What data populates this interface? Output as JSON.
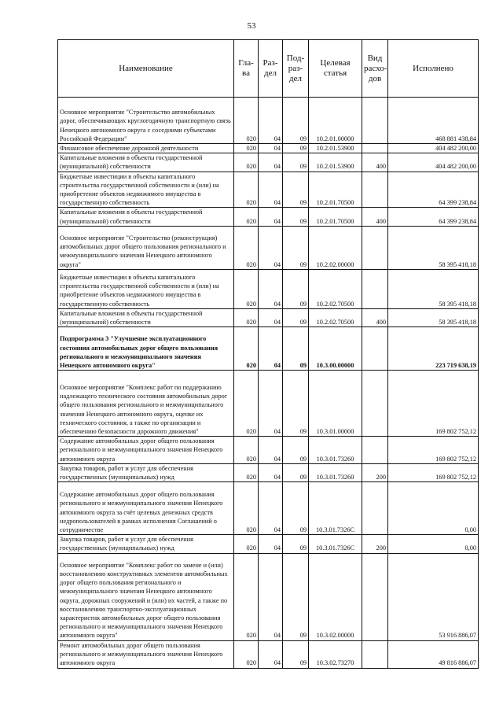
{
  "page_number": "53",
  "headers": [
    "Наименование",
    "Гла-ва",
    "Раз-дел",
    "Под-раз-дел",
    "Целевая статья",
    "Вид расхо-дов",
    "Исполнено"
  ],
  "rows": [
    {
      "name": "Основное мероприятие \"Строительство автомобильных дорог, обеспечивающих круглогодичную транспортную связь Ненецкого автономного округа с соседними субъектами Российской Федерации\"",
      "glava": "020",
      "razdel": "04",
      "podrazdel": "09",
      "celevaya": "10.2.01.00000",
      "vid": "",
      "ispolneno": "468 881 438,84"
    },
    {
      "name": "Финансовое обеспечение дорожной деятельности",
      "glava": "020",
      "razdel": "04",
      "podrazdel": "09",
      "celevaya": "10.2.01.53900",
      "vid": "",
      "ispolneno": "404 482 200,00"
    },
    {
      "name": "Капитальные вложения в объекты государственной (муниципальной) собственности",
      "glava": "020",
      "razdel": "04",
      "podrazdel": "09",
      "celevaya": "10.2.01.53900",
      "vid": "400",
      "ispolneno": "404 482 200,00"
    },
    {
      "name": "Бюджетные инвестиции в объекты капитального строительства государственной собственности и (или) на приобретение объектов недвижимого имущества в государственную собственность",
      "glava": "020",
      "razdel": "04",
      "podrazdel": "09",
      "celevaya": "10.2.01.70500",
      "vid": "",
      "ispolneno": "64 399 238,84"
    },
    {
      "name": "Капитальные вложения в объекты государственной (муниципальной) собственности",
      "glava": "020",
      "razdel": "04",
      "podrazdel": "09",
      "celevaya": "10.2.01.70500",
      "vid": "400",
      "ispolneno": "64 399 238,84"
    },
    {
      "name": "Основное мероприятие \"Строительство (реконструкция) автомобильных дорог общего пользования регионального и межмуниципального значения Ненецкого автономного округа\"",
      "glava": "020",
      "razdel": "04",
      "podrazdel": "09",
      "celevaya": "10.2.02.00000",
      "vid": "",
      "ispolneno": "58 395 418,18"
    },
    {
      "name": "Бюджетные инвестиции в объекты капитального строительства государственной собственности и (или) на приобретение объектов недвижимого имущества в государственную собственность",
      "glava": "020",
      "razdel": "04",
      "podrazdel": "09",
      "celevaya": "10.2.02.70500",
      "vid": "",
      "ispolneno": "58 395 418,18"
    },
    {
      "name": "Капитальные вложения в объекты государственной (муниципальной) собственности",
      "glava": "020",
      "razdel": "04",
      "podrazdel": "09",
      "celevaya": "10.2.02.70500",
      "vid": "400",
      "ispolneno": "58 395 418,18"
    },
    {
      "name": "Подпрограмма 3 \"Улучшение эксплуатационного состояния автомобильных дорог общего пользования регионального и межмуниципального значения Ненецкого автономного округа\"",
      "glava": "020",
      "razdel": "04",
      "podrazdel": "09",
      "celevaya": "10.3.00.00000",
      "vid": "",
      "ispolneno": "223 719 638,19",
      "bold": true
    },
    {
      "name": "Основное мероприятие \"Комплекс работ по поддержанию надлежащего технического состояния автомобильных дорог общего пользования регионального и межмуниципального значения Ненецкого автономного округа, оценке их технического состояния, а также по организации и обеспечению безопасности дорожного движения\"",
      "glava": "020",
      "razdel": "04",
      "podrazdel": "09",
      "celevaya": "10.3.01.00000",
      "vid": "",
      "ispolneno": "169 802 752,12"
    },
    {
      "name": "Содержание автомобильных дорог общего пользования регионального и межмуниципального значения Ненецкого автономного округа",
      "glava": "020",
      "razdel": "04",
      "podrazdel": "09",
      "celevaya": "10.3.01.73260",
      "vid": "",
      "ispolneno": "169 802 752,12"
    },
    {
      "name": "Закупка товаров, работ и услуг для обеспечения государственных (муниципальных) нужд",
      "glava": "020",
      "razdel": "04",
      "podrazdel": "09",
      "celevaya": "10.3.01.73260",
      "vid": "200",
      "ispolneno": "169 802 752,12"
    },
    {
      "name": "Содержание автомобильных дорог общего пользования регионального и межмуниципального значения Ненецкого автономного округа за счёт целевых денежных средств недропользователей в рамках исполнения Соглашений о сотрудничестве",
      "glava": "020",
      "razdel": "04",
      "podrazdel": "09",
      "celevaya": "10.3.01.7326C",
      "vid": "",
      "ispolneno": "0,00"
    },
    {
      "name": "Закупка товаров, работ и услуг для обеспечения государственных (муниципальных) нужд",
      "glava": "020",
      "razdel": "04",
      "podrazdel": "09",
      "celevaya": "10.3.01.7326C",
      "vid": "200",
      "ispolneno": "0,00"
    },
    {
      "name": "Основное мероприятие \"Комплекс работ по замене и (или) восстановлению конструктивных элементов автомобильных дорог общего пользования регионального и межмуниципального значения Ненецкого автономного округа, дорожных сооружений и (или) их частей, а также по восстановлению транспортно-эксплуатационных характеристик автомобильных дорог общего пользования регионального и межмуниципального значения Ненецкого автономного округа\"",
      "glava": "020",
      "razdel": "04",
      "podrazdel": "09",
      "celevaya": "10.3.02.00000",
      "vid": "",
      "ispolneno": "53 916 886,07"
    },
    {
      "name": "Ремонт автомобильных дорог общего пользования регионального и межмуниципального значения Ненецкого автономного округа",
      "glava": "020",
      "razdel": "04",
      "podrazdel": "09",
      "celevaya": "10.3.02.73270",
      "vid": "",
      "ispolneno": "49 816 886,07"
    }
  ]
}
